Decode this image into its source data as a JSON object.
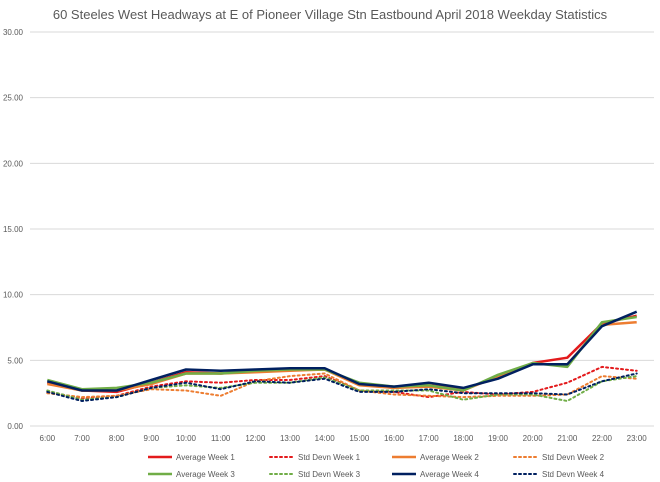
{
  "chart_data": {
    "type": "line",
    "title": "60 Steeles West Headways at E of Pioneer Village Stn Eastbound April 2018 Weekday Statistics",
    "xlabel": "",
    "ylabel": "",
    "x": [
      "6:00",
      "7:00",
      "8:00",
      "9:00",
      "10:00",
      "11:00",
      "12:00",
      "13:00",
      "14:00",
      "15:00",
      "16:00",
      "17:00",
      "18:00",
      "19:00",
      "20:00",
      "21:00",
      "22:00",
      "23:00"
    ],
    "ylim": [
      0,
      30
    ],
    "yticks": [
      "0.00",
      "5.00",
      "10.00",
      "15.00",
      "20.00",
      "25.00",
      "30.00"
    ],
    "grid": true,
    "legend_position": "bottom",
    "series": [
      {
        "name": "Average Week 1",
        "color": "#e31a1c",
        "style": "solid",
        "values": [
          3.3,
          2.7,
          2.6,
          3.3,
          4.1,
          4.0,
          4.2,
          4.3,
          4.3,
          3.2,
          2.9,
          3.1,
          2.8,
          3.7,
          4.8,
          5.2,
          7.8,
          8.4
        ]
      },
      {
        "name": "Std Devn Week 1",
        "color": "#e31a1c",
        "style": "dotted",
        "values": [
          2.6,
          2.1,
          2.3,
          3.0,
          3.4,
          3.3,
          3.5,
          3.5,
          3.8,
          2.7,
          2.6,
          2.2,
          2.6,
          2.4,
          2.6,
          3.3,
          4.5,
          4.2
        ]
      },
      {
        "name": "Average Week 2",
        "color": "#ed7d31",
        "style": "solid",
        "values": [
          3.2,
          2.7,
          2.7,
          3.2,
          4.0,
          4.0,
          4.1,
          4.2,
          4.3,
          3.1,
          2.9,
          3.0,
          2.7,
          3.8,
          4.7,
          4.7,
          7.7,
          7.9
        ]
      },
      {
        "name": "Std Devn Week 2",
        "color": "#ed7d31",
        "style": "dotted",
        "values": [
          2.5,
          2.2,
          2.3,
          2.8,
          2.7,
          2.3,
          3.4,
          3.8,
          4.0,
          2.7,
          2.4,
          2.3,
          2.2,
          2.3,
          2.3,
          2.4,
          3.8,
          3.6
        ]
      },
      {
        "name": "Average Week 3",
        "color": "#70ad47",
        "style": "solid",
        "values": [
          3.5,
          2.8,
          2.9,
          3.3,
          4.0,
          4.0,
          4.2,
          4.3,
          4.3,
          3.3,
          3.0,
          3.1,
          2.7,
          3.9,
          4.8,
          4.5,
          7.9,
          8.3
        ]
      },
      {
        "name": "Std Devn Week 3",
        "color": "#70ad47",
        "style": "dotted",
        "values": [
          2.7,
          2.0,
          2.2,
          2.9,
          3.1,
          2.9,
          3.3,
          3.3,
          3.7,
          2.7,
          2.7,
          2.7,
          2.0,
          2.4,
          2.4,
          1.9,
          3.4,
          3.8
        ]
      },
      {
        "name": "Average Week 4",
        "color": "#002060",
        "style": "solid",
        "values": [
          3.4,
          2.7,
          2.7,
          3.5,
          4.3,
          4.2,
          4.3,
          4.4,
          4.4,
          3.2,
          3.0,
          3.3,
          2.9,
          3.6,
          4.7,
          4.7,
          7.6,
          8.7
        ]
      },
      {
        "name": "Std Devn Week 4",
        "color": "#002060",
        "style": "dotted",
        "values": [
          2.6,
          1.9,
          2.2,
          2.9,
          3.3,
          2.8,
          3.4,
          3.3,
          3.6,
          2.6,
          2.6,
          2.8,
          2.5,
          2.5,
          2.5,
          2.4,
          3.4,
          4.0
        ]
      }
    ]
  }
}
